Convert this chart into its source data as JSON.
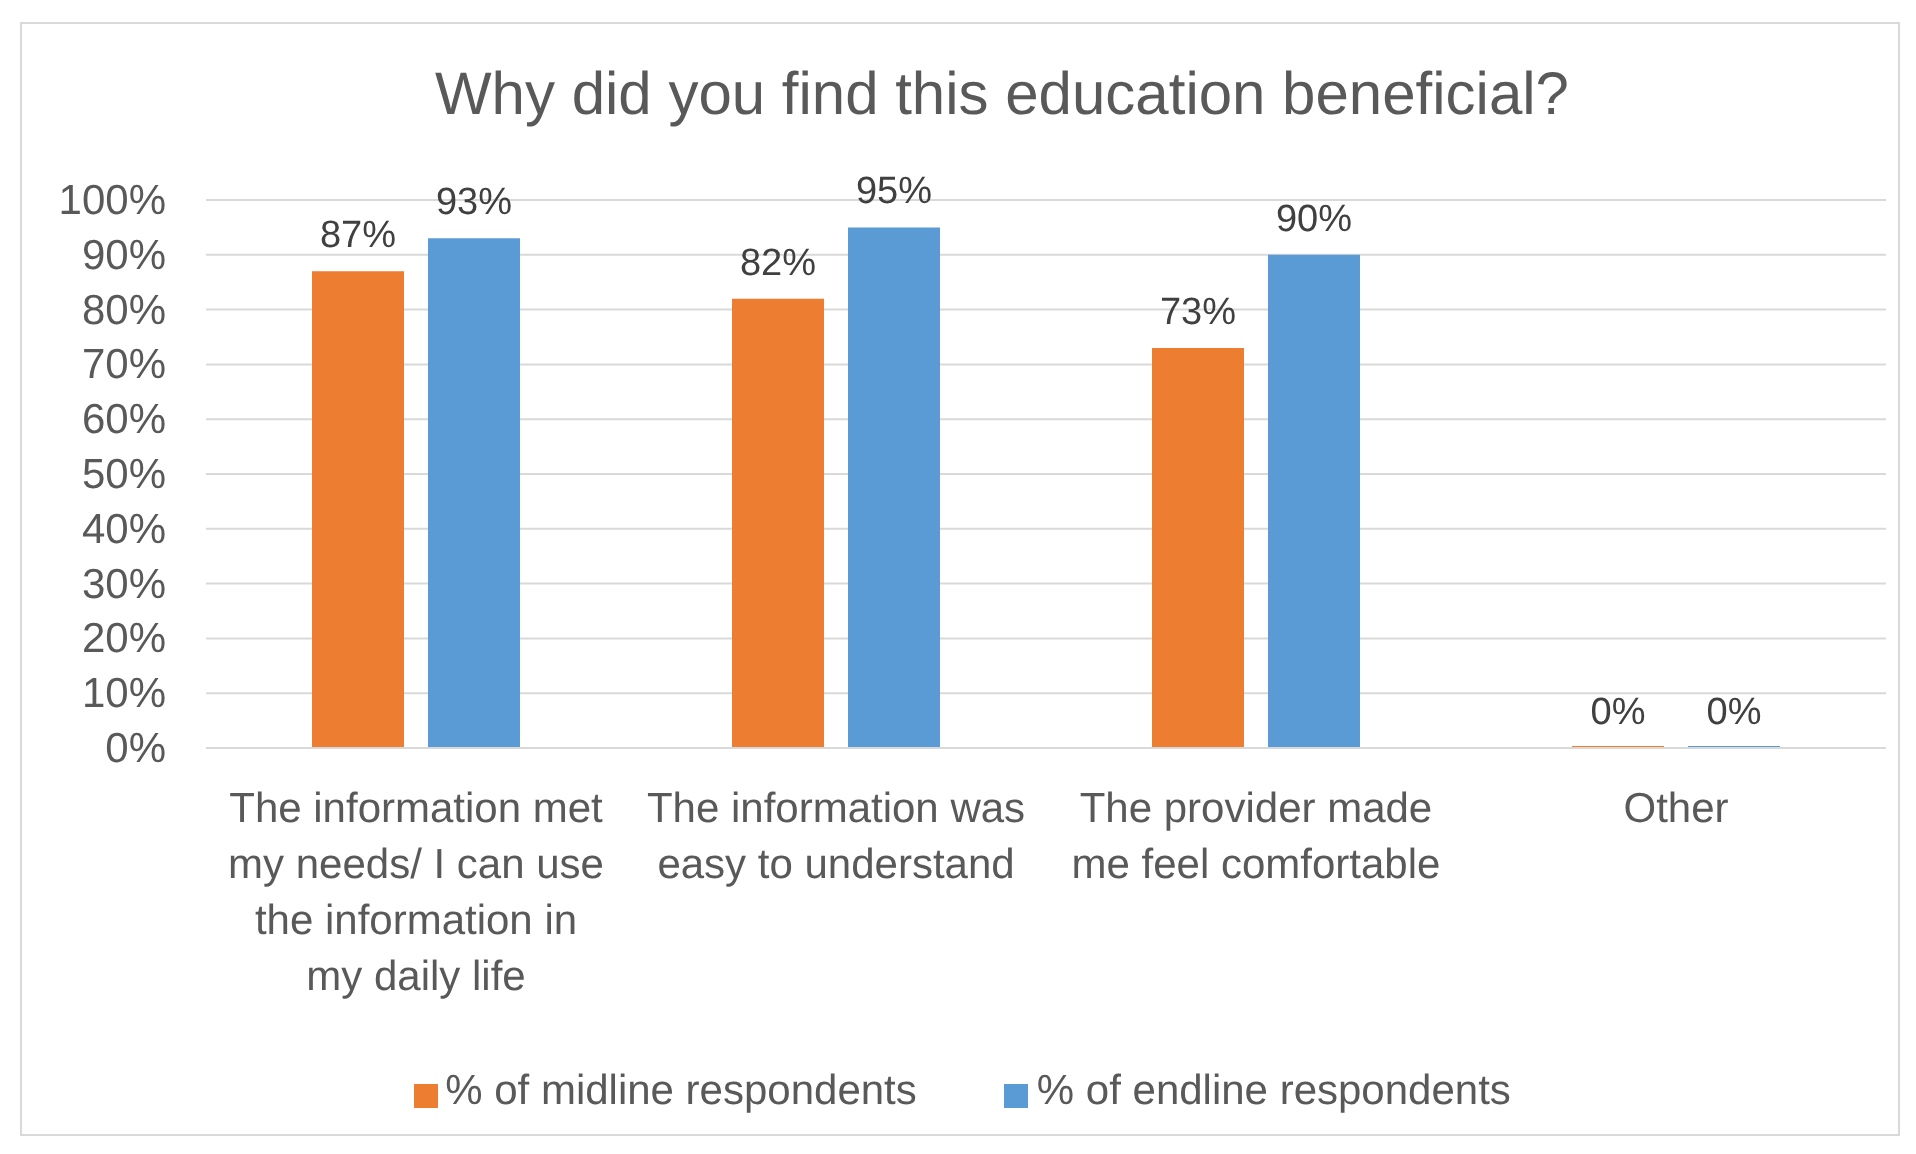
{
  "chart_data": {
    "type": "bar",
    "title": "Why did you find this education beneficial?",
    "categories": [
      "The information met my needs/ I can use the information in my daily life",
      "The information was easy to understand",
      "The provider made me feel comfortable",
      "Other"
    ],
    "series": [
      {
        "name": "% of midline respondents",
        "color": "#ed7d31",
        "values": [
          87,
          82,
          73,
          0
        ],
        "value_labels": [
          "87%",
          "82%",
          "73%",
          "0%"
        ]
      },
      {
        "name": "% of endline respondents",
        "color": "#5b9bd5",
        "values": [
          93,
          95,
          90,
          0
        ],
        "value_labels": [
          "93%",
          "95%",
          "90%",
          "0%"
        ]
      }
    ],
    "ylim": [
      0,
      100
    ],
    "yticks": [
      {
        "value": 0,
        "label": "0%"
      },
      {
        "value": 10,
        "label": "10%"
      },
      {
        "value": 20,
        "label": "20%"
      },
      {
        "value": 30,
        "label": "30%"
      },
      {
        "value": 40,
        "label": "40%"
      },
      {
        "value": 50,
        "label": "50%"
      },
      {
        "value": 60,
        "label": "60%"
      },
      {
        "value": 70,
        "label": "70%"
      },
      {
        "value": 80,
        "label": "80%"
      },
      {
        "value": 90,
        "label": "90%"
      },
      {
        "value": 100,
        "label": "100%"
      }
    ],
    "grid": "y",
    "legend": "bottom"
  }
}
